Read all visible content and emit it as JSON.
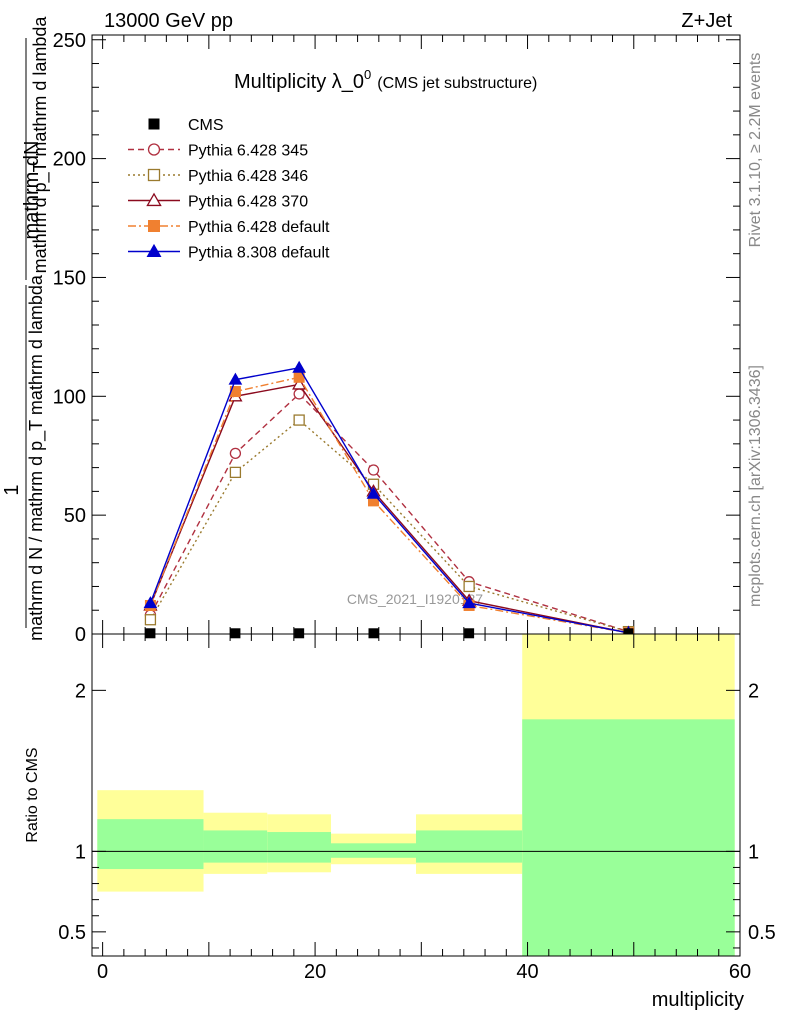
{
  "header": {
    "energy_label": "13000 GeV pp",
    "process_label": "Z+Jet",
    "title_main": "Multiplicity λ_0",
    "title_sup": "0",
    "title_sub": "(CMS jet substructure)",
    "side_label_rivet": "Rivet 3.1.10, ≥ 2.2M events",
    "side_label_mcplots": "mcplots.cern.ch [arXiv:1306.3436]",
    "watermark": "CMS_2021_I1920187"
  },
  "ylabel": {
    "numerator": "mathrm dN",
    "fraction": "mathrm d p_T mathrm d lambda",
    "one": "1",
    "denominator": "mathrm d N / mathrm d p_T mathrm d lambda"
  },
  "ratio_ylabel": "Ratio to CMS",
  "xlabel": "multiplicity",
  "legend": [
    {
      "label": "CMS",
      "color": "#000000",
      "marker": "square-filled",
      "dash": "none"
    },
    {
      "label": "Pythia 6.428 345",
      "color": "#b03040",
      "marker": "circle-open",
      "dash": "6,4"
    },
    {
      "label": "Pythia 6.428 346",
      "color": "#9a7a2e",
      "marker": "square-open",
      "dash": "2,3"
    },
    {
      "label": "Pythia 6.428 370",
      "color": "#8b0a1e",
      "marker": "triangle-open",
      "dash": ""
    },
    {
      "label": "Pythia 6.428 default",
      "color": "#f08030",
      "marker": "square-filled",
      "dash": "8,3,2,3"
    },
    {
      "label": "Pythia 8.308 default",
      "color": "#0000cc",
      "marker": "triangle-filled",
      "dash": ""
    }
  ],
  "chart_data": [
    {
      "type": "line",
      "panel": "main",
      "xlim": [
        -1,
        60
      ],
      "ylim": [
        0,
        252
      ],
      "x_ticks": [
        0,
        20,
        40,
        60
      ],
      "y_ticks": [
        0,
        50,
        100,
        150,
        200,
        250
      ],
      "y_tick_labels": [
        "0",
        "50",
        "100",
        "150",
        "200",
        "250"
      ],
      "series": [
        {
          "name": "CMS",
          "x": [
            4.5,
            12.5,
            18.5,
            25.5,
            34.5,
            49.5
          ],
          "y": [
            0.3,
            0.3,
            0.3,
            0.3,
            0.3,
            0.3
          ]
        },
        {
          "name": "Pythia 6.428 345",
          "x": [
            4.5,
            12.5,
            18.5,
            25.5,
            34.5,
            49.5
          ],
          "y": [
            8,
            76,
            101,
            69,
            22,
            1
          ]
        },
        {
          "name": "Pythia 6.428 346",
          "x": [
            4.5,
            12.5,
            18.5,
            25.5,
            34.5,
            49.5
          ],
          "y": [
            6,
            68,
            90,
            63,
            20,
            1
          ]
        },
        {
          "name": "Pythia 6.428 370",
          "x": [
            4.5,
            12.5,
            18.5,
            25.5,
            34.5,
            49.5
          ],
          "y": [
            12,
            100,
            105,
            60,
            14,
            0.5
          ]
        },
        {
          "name": "Pythia 6.428 default",
          "x": [
            4.5,
            12.5,
            18.5,
            25.5,
            34.5,
            49.5
          ],
          "y": [
            12,
            102,
            108,
            56,
            12,
            0.5
          ]
        },
        {
          "name": "Pythia 8.308 default",
          "x": [
            4.5,
            12.5,
            18.5,
            25.5,
            34.5,
            49.5
          ],
          "y": [
            13,
            107,
            112,
            59,
            13,
            0.5
          ]
        }
      ]
    },
    {
      "type": "area",
      "panel": "ratio",
      "xlim": [
        -1,
        60
      ],
      "ylim": [
        0.35,
        2.35
      ],
      "y_ticks": [
        0.5,
        1,
        2
      ],
      "y_tick_labels": [
        "0.5",
        "1",
        "2"
      ],
      "x_ticks": [
        0,
        20,
        40,
        60
      ],
      "x_tick_labels": [
        "0",
        "20",
        "40",
        "60"
      ],
      "reference_line": 1,
      "bins": [
        {
          "x0": -0.5,
          "x1": 9.5,
          "yellow": [
            0.75,
            1.38
          ],
          "green": [
            0.89,
            1.2
          ]
        },
        {
          "x0": 9.5,
          "x1": 15.5,
          "yellow": [
            0.86,
            1.24
          ],
          "green": [
            0.93,
            1.13
          ]
        },
        {
          "x0": 15.5,
          "x1": 21.5,
          "yellow": [
            0.87,
            1.23
          ],
          "green": [
            0.93,
            1.12
          ]
        },
        {
          "x0": 21.5,
          "x1": 29.5,
          "yellow": [
            0.92,
            1.11
          ],
          "green": [
            0.96,
            1.05
          ]
        },
        {
          "x0": 29.5,
          "x1": 39.5,
          "yellow": [
            0.86,
            1.23
          ],
          "green": [
            0.93,
            1.13
          ]
        },
        {
          "x0": 39.5,
          "x1": 59.5,
          "yellow": [
            0.35,
            2.35
          ],
          "green": [
            0.35,
            1.82
          ]
        }
      ],
      "colors": {
        "yellow": "#ffff99",
        "green": "#99ff99"
      }
    }
  ]
}
